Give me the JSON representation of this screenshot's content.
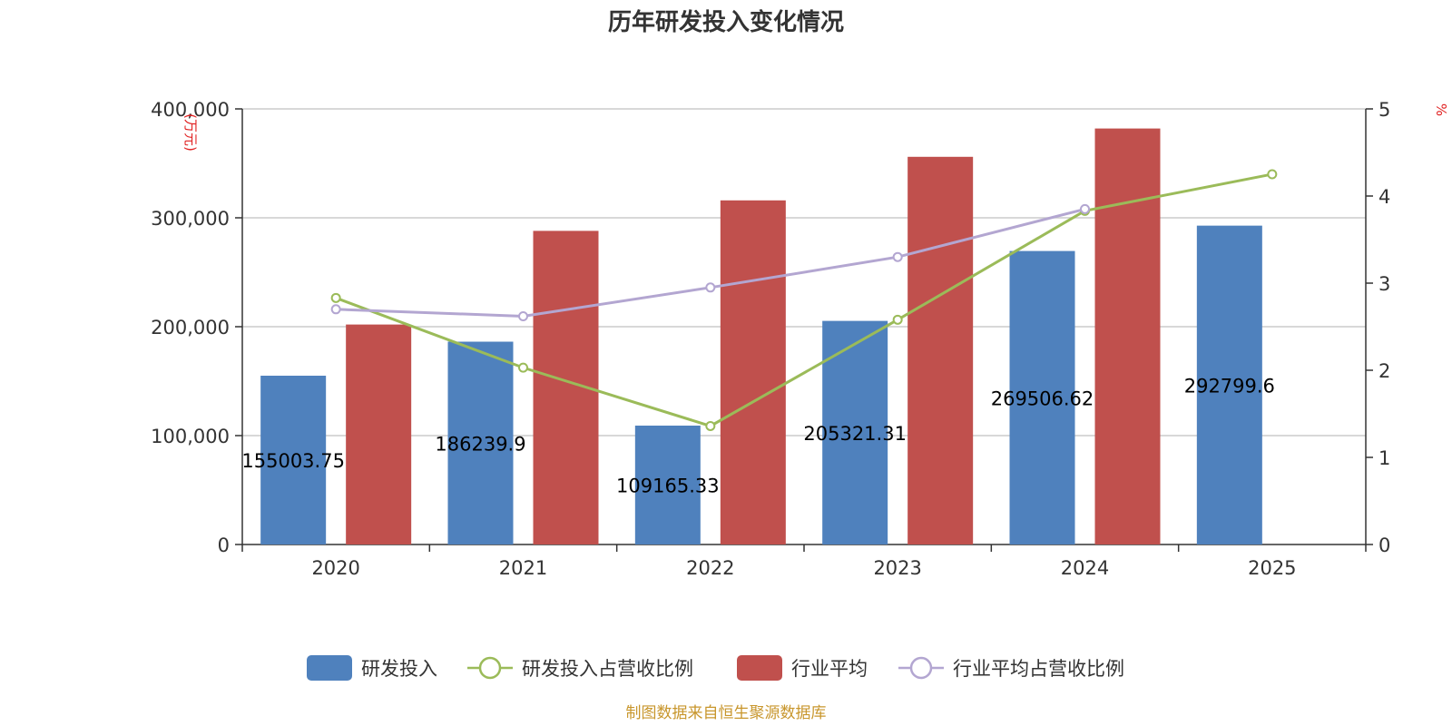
{
  "chart_data": {
    "type": "bar",
    "title": "历年研发投入变化情况",
    "categories": [
      "2020",
      "2021",
      "2022",
      "2023",
      "2024",
      "2025"
    ],
    "left_axis": {
      "unit": "(万元)",
      "range": [
        0,
        400000
      ],
      "ticks": [
        0,
        100000,
        200000,
        300000,
        400000
      ],
      "tick_labels": [
        "0",
        "100,000",
        "200,000",
        "300,000",
        "400,000"
      ]
    },
    "right_axis": {
      "unit": "%",
      "range": [
        0,
        5
      ],
      "ticks": [
        0,
        1,
        2,
        3,
        4,
        5
      ],
      "tick_labels": [
        "0",
        "1",
        "2",
        "3",
        "4",
        "5"
      ]
    },
    "series": [
      {
        "name": "研发投入",
        "type": "bar",
        "axis": "left",
        "color": "#4f81bd",
        "values": [
          155003.75,
          186239.9,
          109165.33,
          205321.31,
          269506.62,
          292799.6
        ],
        "labels": [
          "155003.75",
          "186239.9",
          "109165.33",
          "205321.31",
          "269506.62",
          "292799.6"
        ]
      },
      {
        "name": "研发投入占营收比例",
        "type": "line",
        "axis": "right",
        "color": "#9bbb59",
        "values": [
          2.83,
          2.03,
          1.36,
          2.58,
          3.83,
          4.25
        ]
      },
      {
        "name": "行业平均",
        "type": "bar",
        "axis": "left",
        "color": "#c0504d",
        "values": [
          202000,
          288000,
          316000,
          356000,
          382000,
          null
        ]
      },
      {
        "name": "行业平均占营收比例",
        "type": "line",
        "axis": "right",
        "color": "#b3a6d1",
        "values": [
          2.7,
          2.62,
          2.95,
          3.3,
          3.85,
          null
        ]
      }
    ],
    "legend_position": "bottom-center",
    "grid": true
  },
  "source_note": "制图数据来自恒生聚源数据库",
  "colors": {
    "axis_unit": "#e02020",
    "source_note": "#c8962c",
    "grid": "#cccccc",
    "axis_line": "#333333"
  }
}
